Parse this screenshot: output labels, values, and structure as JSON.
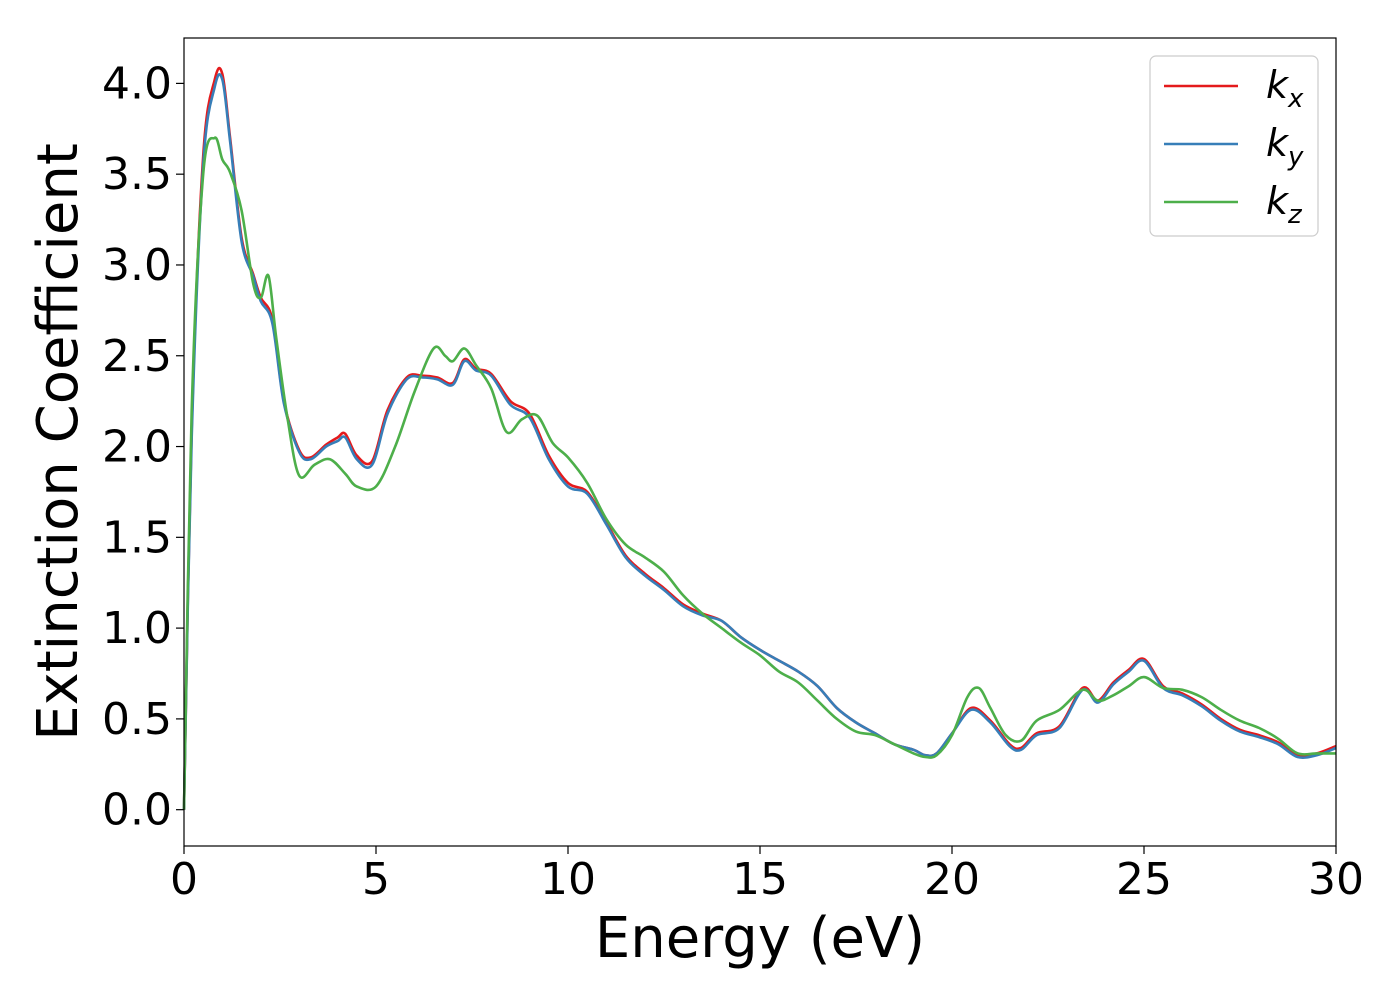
{
  "chart_data": {
    "type": "line",
    "xlabel": "Energy (eV)",
    "ylabel": "Extinction Coefficient",
    "xlim": [
      0,
      30
    ],
    "ylim": [
      -0.2,
      4.25
    ],
    "xticks": [
      0,
      5,
      10,
      15,
      20,
      25,
      30
    ],
    "xtick_labels": [
      "0",
      "5",
      "10",
      "15",
      "20",
      "25",
      "30"
    ],
    "yticks": [
      0.0,
      0.5,
      1.0,
      1.5,
      2.0,
      2.5,
      3.0,
      3.5,
      4.0
    ],
    "ytick_labels": [
      "0.0",
      "0.5",
      "1.0",
      "1.5",
      "2.0",
      "2.5",
      "3.0",
      "3.5",
      "4.0"
    ],
    "grid": false,
    "legend_position": "top-right",
    "series": [
      {
        "name": "k_x",
        "label_base": "k",
        "label_sub": "x",
        "color": "#e41a1c",
        "x": [
          0,
          0.2,
          0.5,
          0.8,
          1.0,
          1.2,
          1.5,
          1.8,
          2.0,
          2.3,
          2.6,
          3.0,
          3.3,
          3.7,
          4.0,
          4.2,
          4.5,
          4.9,
          5.3,
          5.8,
          6.2,
          6.6,
          7.0,
          7.3,
          7.6,
          8.0,
          8.5,
          9.0,
          9.5,
          10.0,
          10.5,
          11.0,
          11.5,
          12.0,
          12.5,
          13.0,
          13.5,
          14.0,
          14.5,
          15.0,
          15.5,
          16.0,
          16.5,
          17.0,
          17.5,
          18.0,
          18.5,
          19.0,
          19.3,
          19.6,
          20.0,
          20.5,
          21.0,
          21.5,
          21.8,
          22.2,
          22.8,
          23.4,
          23.8,
          24.2,
          24.6,
          25.0,
          25.5,
          26.0,
          26.5,
          27.0,
          27.5,
          28.0,
          28.5,
          29.0,
          29.5,
          30.0
        ],
        "values": [
          0.0,
          2.1,
          3.6,
          4.02,
          4.05,
          3.7,
          3.15,
          2.95,
          2.82,
          2.7,
          2.25,
          1.98,
          1.94,
          2.01,
          2.05,
          2.07,
          1.95,
          1.92,
          2.2,
          2.38,
          2.39,
          2.38,
          2.35,
          2.48,
          2.43,
          2.4,
          2.25,
          2.18,
          1.95,
          1.8,
          1.75,
          1.58,
          1.4,
          1.3,
          1.22,
          1.13,
          1.08,
          1.04,
          0.95,
          0.88,
          0.82,
          0.76,
          0.68,
          0.56,
          0.48,
          0.42,
          0.36,
          0.33,
          0.3,
          0.31,
          0.42,
          0.56,
          0.49,
          0.36,
          0.34,
          0.42,
          0.46,
          0.67,
          0.6,
          0.7,
          0.77,
          0.83,
          0.68,
          0.64,
          0.58,
          0.5,
          0.44,
          0.41,
          0.37,
          0.3,
          0.31,
          0.35
        ]
      },
      {
        "name": "k_y",
        "label_base": "k",
        "label_sub": "y",
        "color": "#377eb8",
        "x": [
          0,
          0.2,
          0.5,
          0.8,
          1.0,
          1.2,
          1.5,
          1.8,
          2.0,
          2.3,
          2.6,
          3.0,
          3.3,
          3.7,
          4.0,
          4.2,
          4.5,
          4.9,
          5.3,
          5.8,
          6.2,
          6.6,
          7.0,
          7.3,
          7.6,
          8.0,
          8.5,
          9.0,
          9.5,
          10.0,
          10.5,
          11.0,
          11.5,
          12.0,
          12.5,
          13.0,
          13.5,
          14.0,
          14.5,
          15.0,
          15.5,
          16.0,
          16.5,
          17.0,
          17.5,
          18.0,
          18.5,
          19.0,
          19.3,
          19.6,
          20.0,
          20.5,
          21.0,
          21.5,
          21.8,
          22.2,
          22.8,
          23.4,
          23.8,
          24.2,
          24.6,
          25.0,
          25.5,
          26.0,
          26.5,
          27.0,
          27.5,
          28.0,
          28.5,
          29.0,
          29.5,
          30.0
        ],
        "values": [
          0.0,
          2.05,
          3.55,
          3.98,
          4.02,
          3.68,
          3.13,
          2.94,
          2.8,
          2.68,
          2.24,
          1.97,
          1.93,
          2.0,
          2.03,
          2.05,
          1.93,
          1.9,
          2.18,
          2.37,
          2.38,
          2.37,
          2.34,
          2.47,
          2.42,
          2.39,
          2.23,
          2.16,
          1.93,
          1.78,
          1.74,
          1.57,
          1.39,
          1.29,
          1.21,
          1.12,
          1.07,
          1.04,
          0.95,
          0.88,
          0.82,
          0.76,
          0.68,
          0.56,
          0.48,
          0.42,
          0.36,
          0.33,
          0.3,
          0.31,
          0.42,
          0.55,
          0.48,
          0.35,
          0.33,
          0.41,
          0.45,
          0.66,
          0.59,
          0.69,
          0.76,
          0.82,
          0.67,
          0.63,
          0.57,
          0.49,
          0.43,
          0.4,
          0.36,
          0.29,
          0.3,
          0.34
        ]
      },
      {
        "name": "k_z",
        "label_base": "k",
        "label_sub": "z",
        "color": "#4daf4a",
        "x": [
          0,
          0.2,
          0.5,
          0.8,
          1.0,
          1.2,
          1.5,
          1.8,
          2.0,
          2.2,
          2.4,
          2.7,
          3.0,
          3.4,
          3.8,
          4.2,
          4.5,
          5.0,
          5.5,
          6.0,
          6.5,
          6.8,
          7.0,
          7.3,
          7.6,
          8.0,
          8.4,
          8.8,
          9.2,
          9.6,
          10.0,
          10.5,
          11.0,
          11.5,
          12.0,
          12.5,
          13.0,
          13.5,
          14.0,
          14.5,
          15.0,
          15.5,
          16.0,
          16.5,
          17.0,
          17.5,
          18.0,
          18.5,
          19.0,
          19.3,
          19.6,
          20.0,
          20.4,
          20.7,
          21.0,
          21.4,
          21.8,
          22.2,
          22.8,
          23.4,
          23.8,
          24.2,
          24.6,
          25.0,
          25.5,
          26.0,
          26.5,
          27.0,
          27.5,
          28.0,
          28.5,
          29.0,
          29.5,
          30.0
        ],
        "values": [
          0.0,
          2.2,
          3.5,
          3.7,
          3.58,
          3.51,
          3.3,
          2.9,
          2.82,
          2.94,
          2.6,
          2.15,
          1.84,
          1.9,
          1.93,
          1.85,
          1.78,
          1.78,
          2.0,
          2.3,
          2.54,
          2.5,
          2.47,
          2.54,
          2.45,
          2.32,
          2.08,
          2.15,
          2.17,
          2.02,
          1.94,
          1.8,
          1.6,
          1.46,
          1.39,
          1.31,
          1.18,
          1.08,
          1.0,
          0.92,
          0.85,
          0.76,
          0.7,
          0.6,
          0.5,
          0.43,
          0.41,
          0.36,
          0.31,
          0.29,
          0.3,
          0.41,
          0.62,
          0.67,
          0.56,
          0.41,
          0.38,
          0.49,
          0.55,
          0.66,
          0.6,
          0.63,
          0.68,
          0.73,
          0.67,
          0.66,
          0.62,
          0.55,
          0.49,
          0.45,
          0.39,
          0.31,
          0.31,
          0.31
        ]
      }
    ]
  }
}
